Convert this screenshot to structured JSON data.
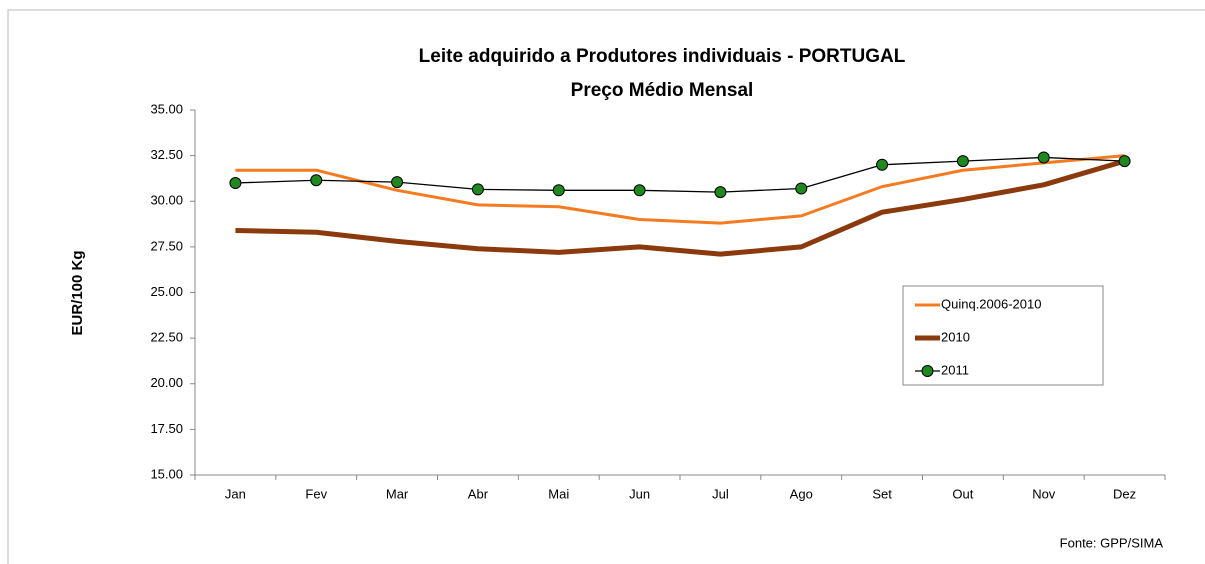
{
  "chart_data": {
    "type": "line",
    "title": "Leite adquirido a Produtores individuais - PORTUGAL",
    "subtitle": "Preço Médio Mensal",
    "y_label": "EUR/100 Kg",
    "source": "Fonte: GPP/SIMA",
    "categories": [
      "Jan",
      "Fev",
      "Mar",
      "Abr",
      "Mai",
      "Jun",
      "Jul",
      "Ago",
      "Set",
      "Out",
      "Nov",
      "Dez"
    ],
    "series": [
      {
        "name": "Quinq.2006-2010",
        "color": "#f47b20",
        "line_width": 3,
        "marker": false,
        "values": [
          31.7,
          31.7,
          30.6,
          29.8,
          29.7,
          29.0,
          28.8,
          29.2,
          30.8,
          31.7,
          32.1,
          32.5
        ]
      },
      {
        "name": "2010",
        "color": "#8b3a0e",
        "line_width": 5,
        "marker": false,
        "values": [
          28.4,
          28.3,
          27.8,
          27.4,
          27.2,
          27.5,
          27.1,
          27.5,
          29.4,
          30.1,
          30.9,
          32.2
        ]
      },
      {
        "name": "2011",
        "color": "#000000",
        "line_width": 1.3,
        "marker": true,
        "marker_color": "#1e8a1e",
        "values": [
          31.0,
          31.15,
          31.05,
          30.65,
          30.6,
          30.6,
          30.5,
          30.7,
          32.0,
          32.2,
          32.4,
          32.2
        ]
      }
    ],
    "ylim": [
      15,
      35
    ],
    "yticks": [
      {
        "value": 15,
        "label": "15.00"
      },
      {
        "value": 17.5,
        "label": "17.50"
      },
      {
        "value": 20,
        "label": "20.00"
      },
      {
        "value": 22.5,
        "label": "22.50"
      },
      {
        "value": 25,
        "label": "25.00"
      },
      {
        "value": 27.5,
        "label": "27.50"
      },
      {
        "value": 30,
        "label": "30.00"
      },
      {
        "value": 32.5,
        "label": "32.50"
      },
      {
        "value": 35,
        "label": "35.00"
      }
    ],
    "grid": false,
    "legend": "right"
  }
}
